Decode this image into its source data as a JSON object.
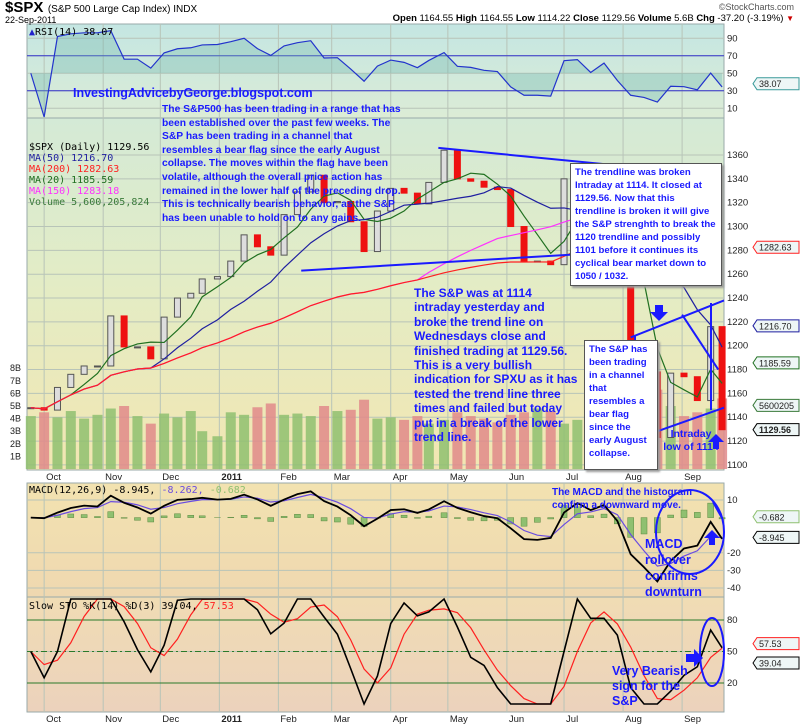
{
  "header": {
    "symbol": "$SPX",
    "name": "(S&P 500 Large Cap Index) INDX",
    "date": "22-Sep-2011",
    "copyright": "©StockCharts.com",
    "open_label": "Open",
    "open": "1164.55",
    "high_label": "High",
    "high": "1164.55",
    "low_label": "Low",
    "low": "1114.22",
    "close_label": "Close",
    "close": "1129.56",
    "volume_label": "Volume",
    "volume": "5.6B",
    "chg_label": "Chg",
    "chg": "-37.20 (-3.19%)"
  },
  "legends": {
    "rsi": "RSI(14) 38.07",
    "price": "$SPX (Daily) 1129.56",
    "ma50": "MA(50) 1216.70",
    "ma200": "MA(200) 1282.63",
    "ma20": "MA(20) 1185.59",
    "ma150": "MA(150) 1283.18",
    "volume": "Volume 5,600,205,824",
    "macd_name": "MACD(12,26,9)",
    "macd_val": "-8.945,",
    "macd_signal": "-8.262,",
    "macd_hist": "-0.682",
    "sto_name": "Slow STO %K(14) %D(3) 39.04,",
    "sto_d": "57.53"
  },
  "annotations": {
    "blog": "InvestingAdvicebyGeorge.blogspot.com",
    "para1": "The S&P500 has been trading in a range that has been established over the past few weeks. The S&P has been trading in a channel that resembles a bear flag since the early August collapse. The moves within the flag have been volatile, although the overall price action has remained in the lower half of the preceding drop. This is technically bearish behavior, as the S&P has been unable to hold on to any gains.",
    "box1": "The trendline was broken Intraday at 1114. It closed at 1129.56. Now that this trendline is broken it will give the S&P strenghth to break the 1120 trendline and  possibly 1101 before it continues its cyclical bear market down to 1050 / 1032.",
    "para2": "The S&P was at 1114 intraday yesterday and broke the trend line on Wednesdays close and finished trading at 1129.56. This is a very bullish indication for SPXU as it has tested the trend line three times and failed but today put in a break of the lower trend line.",
    "box2": "The S&P has been trading in a channel that resembles a bear flag since the early August collapse.",
    "intraday": [
      "Intraday",
      "low of 1114"
    ],
    "macd_note": [
      "The MACD and the histogram",
      "confirm a downward move."
    ],
    "macd_rollover": [
      "MACD",
      "rollover",
      "confirms",
      "downturn"
    ],
    "bearish": [
      "Very Bearish",
      "sign for the",
      "S&P"
    ]
  },
  "colors": {
    "annotation": "#1a1aff",
    "ma50": "#1f1fa0",
    "ma200": "#ff2020",
    "ma20": "#207020",
    "ma150": "#ff30ff",
    "volume_up": "#8fbf70",
    "volume_down": "#e08a8a",
    "candle_up": "#555555",
    "candle_down": "#ee1111",
    "macd": "#000000",
    "signal": "#6a4ce0",
    "histogram": "#8fc070",
    "sto_k": "#000000",
    "sto_d": "#ff2020"
  },
  "chart_data": {
    "type": "candlestick",
    "x_range": [
      "2010-09-22",
      "2011-09-23"
    ],
    "x_tick_labels": [
      {
        "label": "Oct",
        "date": "2010-10-01"
      },
      {
        "label": "Nov",
        "date": "2010-11-01"
      },
      {
        "label": "Dec",
        "date": "2010-12-01"
      },
      {
        "label": "2011",
        "date": "2011-01-01"
      },
      {
        "label": "Feb",
        "date": "2011-02-01"
      },
      {
        "label": "Mar",
        "date": "2011-03-01"
      },
      {
        "label": "Apr",
        "date": "2011-04-01"
      },
      {
        "label": "May",
        "date": "2011-05-01"
      },
      {
        "label": "Jun",
        "date": "2011-06-01"
      },
      {
        "label": "Jul",
        "date": "2011-07-01"
      },
      {
        "label": "Aug",
        "date": "2011-08-01"
      },
      {
        "label": "Sep",
        "date": "2011-09-01"
      }
    ],
    "dates": [
      "2010-09-24",
      "2010-10-01",
      "2010-10-08",
      "2010-10-15",
      "2010-10-22",
      "2010-10-29",
      "2010-11-05",
      "2010-11-12",
      "2010-11-19",
      "2010-11-26",
      "2010-12-03",
      "2010-12-10",
      "2010-12-17",
      "2010-12-23",
      "2010-12-31",
      "2011-01-07",
      "2011-01-14",
      "2011-01-21",
      "2011-01-28",
      "2011-02-04",
      "2011-02-11",
      "2011-02-18",
      "2011-02-25",
      "2011-03-04",
      "2011-03-11",
      "2011-03-18",
      "2011-03-25",
      "2011-04-01",
      "2011-04-08",
      "2011-04-15",
      "2011-04-21",
      "2011-04-29",
      "2011-05-06",
      "2011-05-13",
      "2011-05-20",
      "2011-05-27",
      "2011-06-03",
      "2011-06-10",
      "2011-06-17",
      "2011-06-24",
      "2011-07-01",
      "2011-07-08",
      "2011-07-15",
      "2011-07-22",
      "2011-07-29",
      "2011-08-05",
      "2011-08-12",
      "2011-08-19",
      "2011-08-26",
      "2011-09-02",
      "2011-09-09",
      "2011-09-16",
      "2011-09-22"
    ],
    "close": [
      1148,
      1146,
      1165,
      1176,
      1183,
      1183,
      1225,
      1199,
      1199,
      1189,
      1224,
      1240,
      1244,
      1256,
      1258,
      1271,
      1293,
      1283,
      1276,
      1310,
      1329,
      1343,
      1320,
      1321,
      1304,
      1279,
      1313,
      1332,
      1328,
      1319,
      1337,
      1364,
      1340,
      1338,
      1333,
      1331,
      1300,
      1271,
      1271,
      1268,
      1340,
      1344,
      1316,
      1345,
      1292,
      1199,
      1178,
      1123,
      1177,
      1174,
      1154,
      1216,
      1129.56
    ],
    "volume_billions": [
      4.2,
      4.5,
      4.1,
      4.6,
      4.0,
      4.3,
      4.8,
      5.0,
      4.2,
      3.6,
      4.4,
      4.1,
      4.6,
      3.0,
      2.6,
      4.5,
      4.3,
      4.9,
      5.2,
      4.3,
      4.4,
      4.2,
      5.0,
      4.6,
      4.7,
      5.5,
      4.0,
      4.1,
      3.9,
      4.2,
      3.6,
      3.9,
      4.5,
      4.2,
      4.0,
      3.7,
      4.3,
      4.5,
      4.8,
      4.6,
      3.6,
      3.9,
      4.2,
      4.1,
      5.0,
      6.8,
      7.5,
      6.3,
      5.0,
      4.2,
      4.5,
      4.8,
      5.6
    ],
    "price_axis": {
      "range": [
        1100,
        1370
      ],
      "ticks": [
        1100,
        1120,
        1140,
        1160,
        1180,
        1200,
        1220,
        1240,
        1260,
        1280,
        1300,
        1320,
        1340,
        1360
      ]
    },
    "volume_axis": {
      "ticks": [
        "1B",
        "2B",
        "3B",
        "4B",
        "5B",
        "6B",
        "7B",
        "8B"
      ]
    },
    "rsi_axis": {
      "range": [
        0,
        100
      ],
      "ticks": [
        90,
        70,
        50,
        30,
        10
      ]
    },
    "macd_axis": {
      "ticks": [
        10,
        -20,
        -30,
        -40
      ]
    },
    "sto_axis": {
      "ticks": [
        80,
        50,
        20
      ]
    },
    "value_tags": {
      "rsi": "38.07",
      "ma200": "1282.63",
      "ma50": "1216.70",
      "ma20": "1185.59",
      "volume": "5600205",
      "close": "1129.56",
      "macd_hist": "-0.682",
      "macd": "-8.945",
      "sto_d": "57.53",
      "sto_k": "39.04"
    },
    "trendlines": [
      {
        "from": [
          "2011-04-26",
          1366
        ],
        "to": [
          "2011-07-24",
          1352
        ]
      },
      {
        "from": [
          "2011-02-13",
          1263
        ],
        "to": [
          "2011-07-22",
          1278
        ]
      },
      {
        "from": [
          "2011-08-05",
          1207
        ],
        "to": [
          "2011-09-23",
          1238
        ]
      },
      {
        "from": [
          "2011-08-08",
          1122
        ],
        "to": [
          "2011-09-23",
          1148
        ]
      },
      {
        "from": [
          "2011-09-01",
          1226
        ],
        "to": [
          "2011-09-20",
          1180
        ]
      }
    ],
    "grid": true
  }
}
